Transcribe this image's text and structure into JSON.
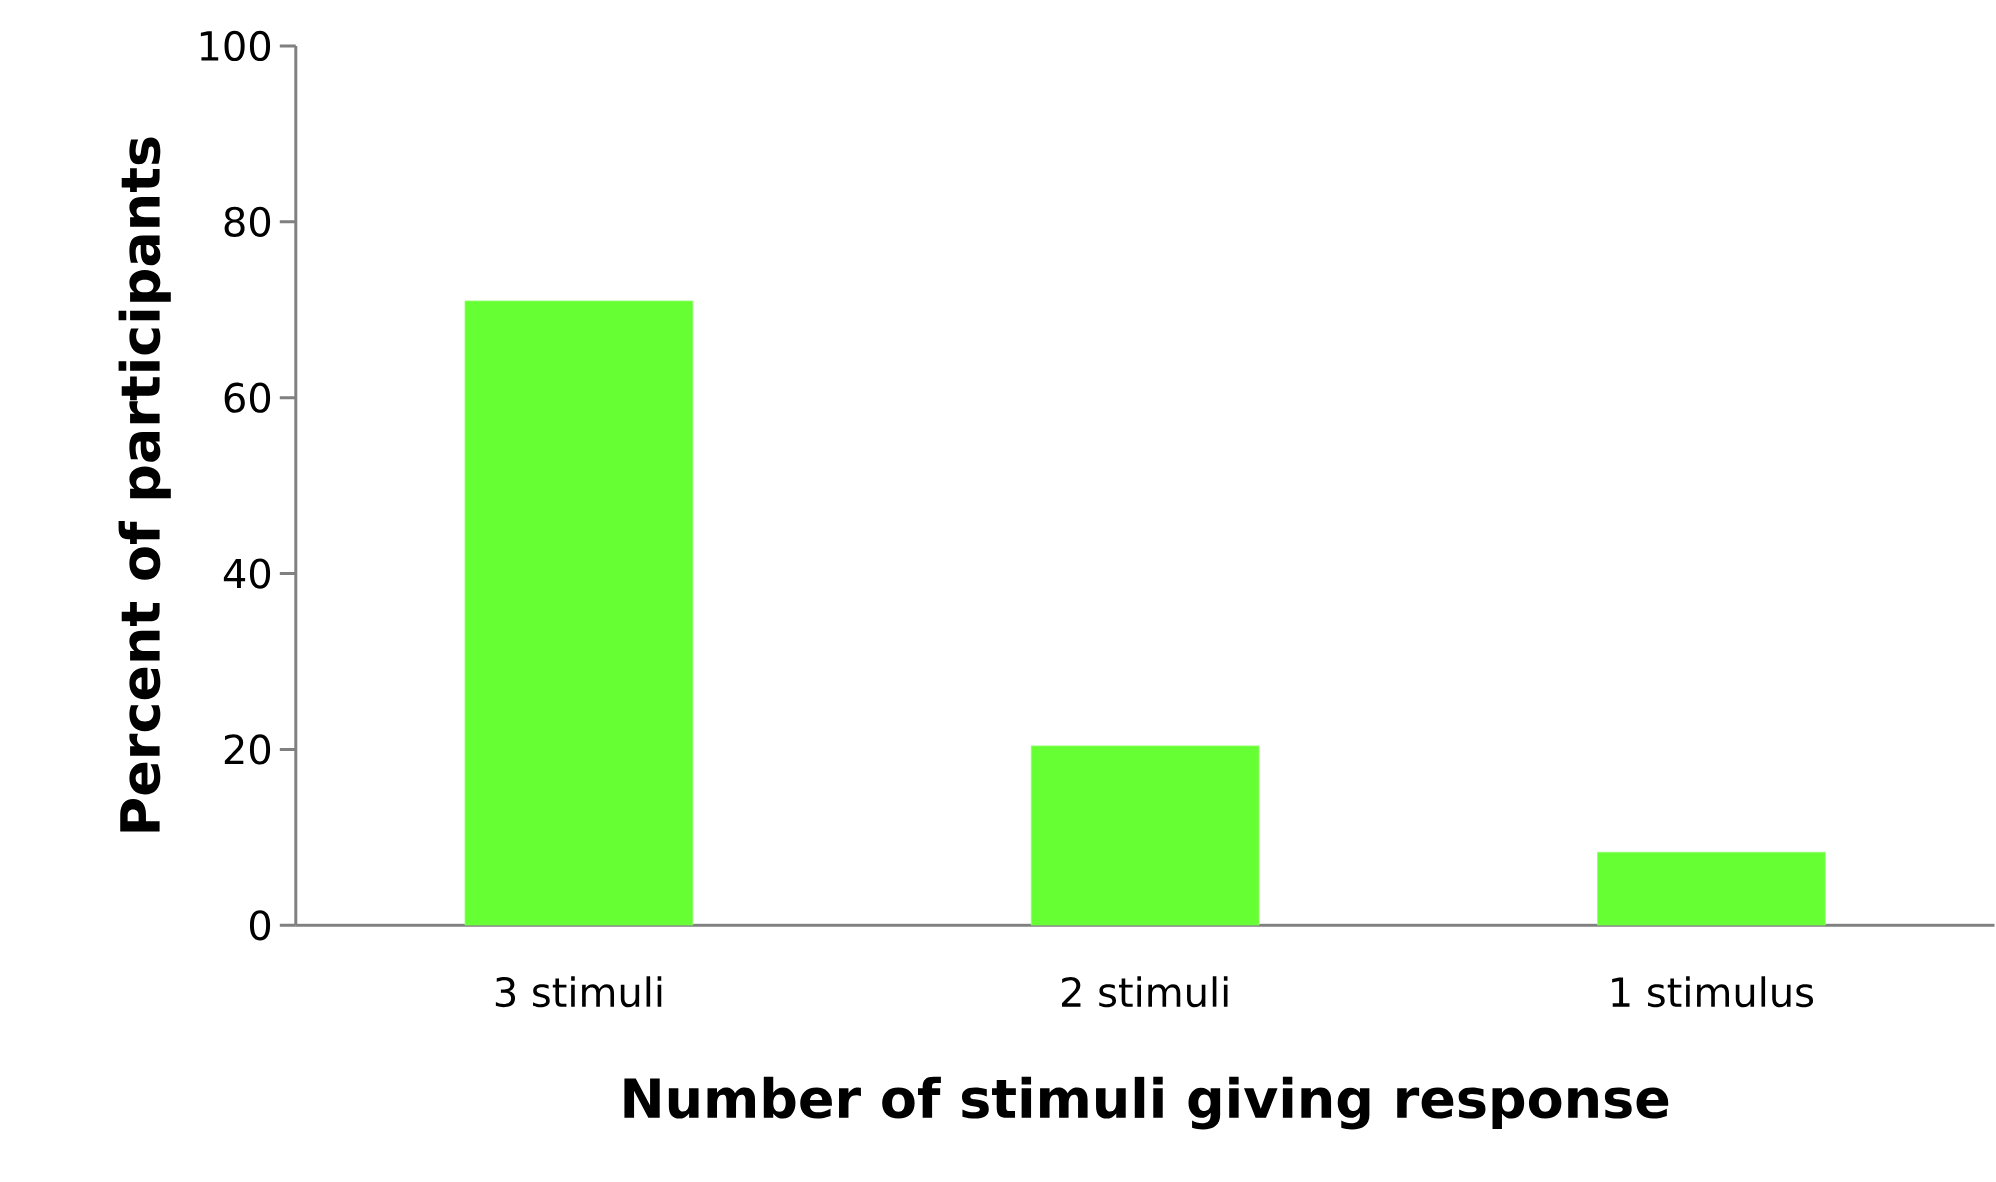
{
  "chart_data": {
    "type": "bar",
    "xlabel": "Number of stimuli giving response",
    "ylabel": "Percent of participants",
    "categories": [
      "3 stimuli",
      "2 stimuli",
      "1 stimulus"
    ],
    "values": [
      71,
      20.4,
      8.3
    ],
    "color": "#66ff33",
    "ylim": [
      0,
      100
    ],
    "yticks": [
      0,
      20,
      40,
      60,
      80,
      100
    ]
  }
}
